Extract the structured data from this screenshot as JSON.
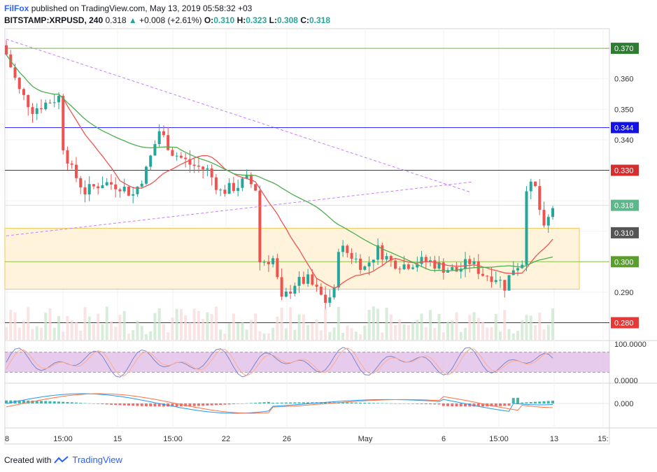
{
  "header": {
    "publisher": "FilFox",
    "published_text": "published on TradingView.com, May 13, 2019 05:58:32 +03",
    "symbol": "BITSTAMP:XRPUSD, 240",
    "last": "0.318",
    "arrow": "▲",
    "change": "+0.008 (+2.61%)",
    "o_label": "O:",
    "o_value": "0.310",
    "h_label": "H:",
    "h_value": "0.323",
    "l_label": "L:",
    "l_value": "0.308",
    "c_label": "C:",
    "c_value": "0.318"
  },
  "footer": {
    "created_with": "Created with",
    "brand": "TradingView"
  },
  "colors": {
    "up": "#26a69a",
    "down": "#ef5350",
    "ma": "#ef5350",
    "ma_slow": "#4caf50",
    "zone_fill": "#fff3dc",
    "zone_border": "#f0c850",
    "red_level": "#cc0000",
    "green_level": "#6a9955",
    "blue_level": "#2a2aff",
    "stoch_fill": "#e1bee7"
  },
  "chart_data": [
    {
      "type": "candlestick",
      "symbol": "BITSTAMP:XRPUSD",
      "interval": "240",
      "x_tick_labels": [
        "8",
        "15:00",
        "15",
        "15:00",
        "22",
        "26",
        "May",
        "6",
        "15:00",
        "13",
        "15:"
      ],
      "y_ticks": [
        "0.360",
        "0.350",
        "0.340",
        "0.290"
      ],
      "ylim": [
        0.274,
        0.375
      ],
      "price_badges": [
        {
          "label": "0.370",
          "color": "#2e7d32"
        },
        {
          "label": "0.344",
          "color": "#1212e6"
        },
        {
          "label": "0.330",
          "color": "#d32f2f"
        },
        {
          "label": "0.318",
          "color": "#5cb88a"
        },
        {
          "label": "0.310",
          "color": "#555555"
        },
        {
          "label": "0.300",
          "color": "#5a9e2f"
        },
        {
          "label": "0.280",
          "color": "#e53935"
        }
      ],
      "horizontal_levels": [
        0.37,
        0.344,
        0.33,
        0.3,
        0.28
      ],
      "zone": [
        0.291,
        0.311
      ],
      "trendlines": [
        {
          "from": [
            0,
            0.373
          ],
          "to": [
            100,
            0.325
          ],
          "style": "dashed"
        },
        {
          "from": [
            0,
            0.3085
          ],
          "to": [
            100,
            0.325
          ],
          "style": "dashed"
        }
      ],
      "anchors": [
        [
          0,
          0.368
        ],
        [
          3,
          0.356
        ],
        [
          6,
          0.35
        ],
        [
          9,
          0.352
        ],
        [
          12,
          0.354
        ],
        [
          13,
          0.338
        ],
        [
          15,
          0.33
        ],
        [
          18,
          0.323
        ],
        [
          22,
          0.326
        ],
        [
          26,
          0.325
        ],
        [
          29,
          0.322
        ],
        [
          32,
          0.33
        ],
        [
          35,
          0.343
        ],
        [
          38,
          0.336
        ],
        [
          42,
          0.332
        ],
        [
          46,
          0.33
        ],
        [
          49,
          0.323
        ],
        [
          53,
          0.325
        ],
        [
          55,
          0.327
        ],
        [
          57,
          0.324
        ],
        [
          58,
          0.3
        ],
        [
          61,
          0.301
        ],
        [
          63,
          0.287
        ],
        [
          66,
          0.293
        ],
        [
          69,
          0.294
        ],
        [
          73,
          0.287
        ],
        [
          75,
          0.29
        ],
        [
          76,
          0.305
        ],
        [
          79,
          0.302
        ],
        [
          82,
          0.298
        ],
        [
          85,
          0.304
        ],
        [
          88,
          0.3
        ],
        [
          91,
          0.299
        ],
        [
          94,
          0.3
        ],
        [
          97,
          0.3
        ],
        [
          100,
          0.298
        ],
        [
          103,
          0.297
        ],
        [
          106,
          0.3
        ],
        [
          109,
          0.296
        ],
        [
          112,
          0.295
        ],
        [
          114,
          0.292
        ],
        [
          116,
          0.298
        ],
        [
          118,
          0.3
        ],
        [
          119,
          0.325
        ],
        [
          121,
          0.324
        ],
        [
          123,
          0.31
        ],
        [
          125,
          0.318
        ]
      ],
      "series": [
        {
          "name": "",
          "kind": "sma_fast"
        },
        {
          "name": "",
          "kind": "sma_slow"
        }
      ]
    },
    {
      "type": "line",
      "indicator": "stochastic",
      "y_ticks": [
        "100.0000",
        "0.0000"
      ],
      "ylim": [
        0,
        100
      ],
      "band": [
        20,
        80
      ]
    },
    {
      "type": "bar",
      "indicator": "macd",
      "y_ticks": [
        "0.000"
      ]
    }
  ]
}
